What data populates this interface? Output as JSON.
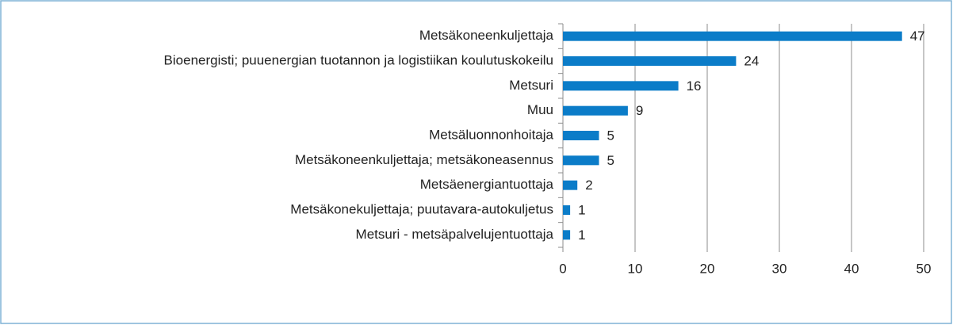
{
  "chart_data": {
    "type": "bar",
    "orientation": "horizontal",
    "categories": [
      "Metsäkoneenkuljettaja",
      "Bioenergisti; puuenergian tuotannon ja logistiikan koulutuskokeilu",
      "Metsuri",
      "Muu",
      "Metsäluonnonhoitaja",
      "Metsäkoneenkuljettaja; metsäkoneasennus",
      "Metsäenergiantuottaja",
      "Metsäkonekuljettaja; puutavara-autokuljetus",
      "Metsuri - metsäpalvelujentuottaja"
    ],
    "values": [
      47,
      24,
      16,
      9,
      5,
      5,
      2,
      1,
      1
    ],
    "color": "#0b7cc8",
    "xlim": [
      0,
      50
    ],
    "xticks": [
      0,
      10,
      20,
      30,
      40,
      50
    ],
    "grid": true
  }
}
